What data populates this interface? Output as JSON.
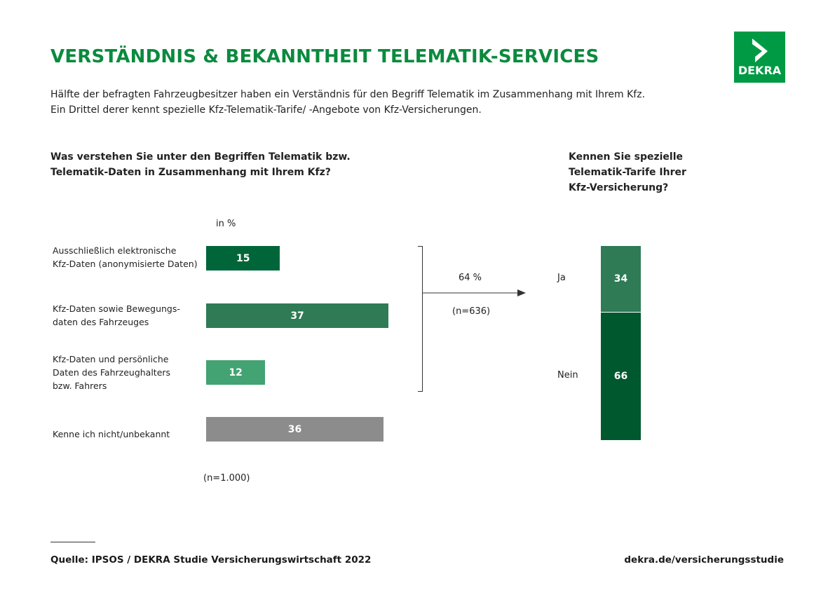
{
  "header": {
    "title": "VERSTÄNDNIS & BEKANNTHEIT TELEMATIK-SERVICES",
    "subtitle_lines": [
      "Hälfte der befragten Fahrzeugbesitzer haben ein Verständnis für den Begriff Telematik im Zusammenhang mit Ihrem Kfz.",
      "Ein Drittel derer kennt spezielle Kfz-Telematik-Tarife/ -Angebote von Kfz-Versicherungen."
    ],
    "logo_text": "DEKRA"
  },
  "colors": {
    "brand": "#009a44",
    "title": "#0b8a3e"
  },
  "chart_data": [
    {
      "type": "bar",
      "orientation": "horizontal",
      "title_lines": [
        "Was verstehen Sie unter den Begriffen Telematik bzw.",
        "Telematik-Daten in Zusammenhang mit Ihrem Kfz?"
      ],
      "unit_label": "in %",
      "categories": [
        [
          "Ausschließlich elektronische",
          "Kfz-Daten (anonymisierte Daten)"
        ],
        [
          "Kfz-Daten sowie Bewegungs-",
          "daten des Fahrzeuges"
        ],
        [
          "Kfz-Daten und persönliche",
          "Daten des Fahrzeughalters",
          "bzw. Fahrers"
        ],
        [
          "Kenne ich nicht/unbekannt"
        ]
      ],
      "values": [
        15,
        37,
        12,
        36
      ],
      "colors": [
        "#00663a",
        "#2e7b56",
        "#43a373",
        "#8c8c8c"
      ],
      "note": "(n=1.000)"
    },
    {
      "type": "bar",
      "stacked": true,
      "title_lines": [
        "Kennen Sie spezielle",
        "Telematik-Tarife Ihrer",
        "Kfz-Versicherung?"
      ],
      "categories": [
        "Ja",
        "Nein"
      ],
      "values": [
        34,
        66
      ],
      "colors": [
        "#2e7b56",
        "#00582f"
      ],
      "arrow_label": "64 %",
      "note": "(n=636)"
    }
  ],
  "footer": {
    "source": "Quelle: IPSOS / DEKRA Studie Versicherungswirtschaft 2022",
    "url": "dekra.de/versicherungsstudie"
  }
}
